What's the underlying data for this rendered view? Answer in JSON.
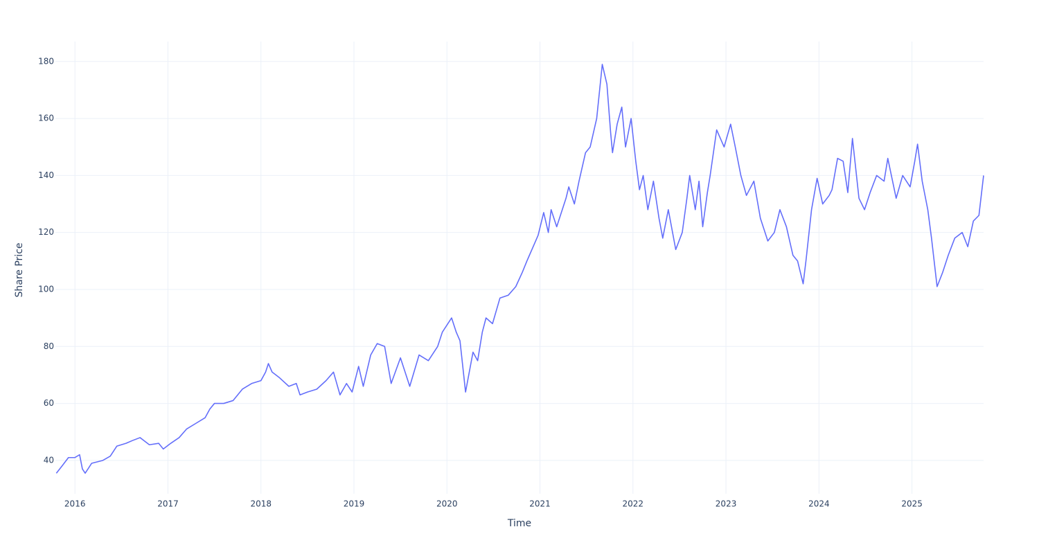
{
  "chart_data": {
    "type": "line",
    "xlabel": "Time",
    "ylabel": "Share Price",
    "xlim": [
      2015.79,
      2025.77
    ],
    "ylim": [
      28.3,
      187
    ],
    "xticks": [
      2016,
      2017,
      2018,
      2019,
      2020,
      2021,
      2022,
      2023,
      2024,
      2025
    ],
    "yticks": [
      40,
      60,
      80,
      100,
      120,
      140,
      160,
      180
    ],
    "grid": true,
    "series": [
      {
        "color": "#636efa",
        "x": [
          2015.8,
          2015.86,
          2015.93,
          2016.0,
          2016.05,
          2016.08,
          2016.11,
          2016.18,
          2016.3,
          2016.38,
          2016.45,
          2016.55,
          2016.62,
          2016.7,
          2016.8,
          2016.9,
          2016.95,
          2017.03,
          2017.12,
          2017.2,
          2017.3,
          2017.4,
          2017.45,
          2017.5,
          2017.6,
          2017.7,
          2017.8,
          2017.9,
          2018.0,
          2018.05,
          2018.08,
          2018.12,
          2018.2,
          2018.3,
          2018.38,
          2018.42,
          2018.5,
          2018.6,
          2018.7,
          2018.78,
          2018.85,
          2018.92,
          2018.98,
          2019.05,
          2019.1,
          2019.18,
          2019.25,
          2019.33,
          2019.4,
          2019.5,
          2019.6,
          2019.7,
          2019.8,
          2019.9,
          2019.95,
          2020.05,
          2020.1,
          2020.14,
          2020.2,
          2020.28,
          2020.33,
          2020.38,
          2020.42,
          2020.49,
          2020.57,
          2020.66,
          2020.74,
          2020.81,
          2020.86,
          2020.94,
          2020.98,
          2021.04,
          2021.09,
          2021.12,
          2021.18,
          2021.28,
          2021.31,
          2021.37,
          2021.42,
          2021.49,
          2021.54,
          2021.61,
          2021.67,
          2021.72,
          2021.76,
          2021.78,
          2021.83,
          2021.88,
          2021.92,
          2021.98,
          2022.03,
          2022.07,
          2022.11,
          2022.16,
          2022.22,
          2022.28,
          2022.32,
          2022.38,
          2022.46,
          2022.53,
          2022.58,
          2022.61,
          2022.67,
          2022.71,
          2022.75,
          2022.8,
          2022.83,
          2022.9,
          2022.98,
          2023.05,
          2023.1,
          2023.16,
          2023.22,
          2023.3,
          2023.37,
          2023.45,
          2023.52,
          2023.58,
          2023.65,
          2023.72,
          2023.77,
          2023.83,
          2023.86,
          2023.92,
          2023.98,
          2024.04,
          2024.11,
          2024.14,
          2024.2,
          2024.26,
          2024.31,
          2024.36,
          2024.43,
          2024.49,
          2024.55,
          2024.62,
          2024.7,
          2024.74,
          2024.83,
          2024.9,
          2024.98,
          2025.03,
          2025.06,
          2025.11,
          2025.17,
          2025.21,
          2025.27,
          2025.33,
          2025.39,
          2025.46,
          2025.54,
          2025.6,
          2025.66,
          2025.72,
          2025.77
        ],
        "values": [
          35.5,
          38,
          41,
          41,
          42,
          37,
          35.5,
          39,
          40,
          41.5,
          45,
          46,
          47,
          48,
          45.5,
          46,
          44,
          46,
          48,
          51,
          53,
          55,
          58,
          60,
          60,
          61,
          65,
          67,
          68,
          71,
          74,
          71,
          69,
          66,
          67,
          63,
          64,
          65,
          68,
          71,
          63,
          67,
          64,
          73,
          66,
          77,
          81,
          80,
          67,
          76,
          66,
          77,
          75,
          80,
          85,
          90,
          85,
          82,
          64,
          78,
          75,
          85,
          90,
          88,
          97,
          98,
          101,
          106,
          110,
          116,
          119,
          127,
          120,
          128,
          122,
          132,
          136,
          130,
          138,
          148,
          150,
          160,
          179,
          172,
          155,
          148,
          158,
          164,
          150,
          160,
          145,
          135,
          140,
          128,
          138,
          125,
          118,
          128,
          114,
          120,
          132,
          140,
          128,
          138,
          122,
          134,
          140,
          156,
          150,
          158,
          150,
          140,
          133,
          138,
          125,
          117,
          120,
          128,
          122,
          112,
          110,
          102,
          110,
          128,
          139,
          130,
          133,
          135,
          146,
          145,
          134,
          153,
          132,
          128,
          134,
          140,
          138,
          146,
          132,
          140,
          136,
          145,
          151,
          138,
          128,
          118,
          101,
          106,
          112,
          118,
          120,
          115,
          124,
          126,
          140
        ]
      }
    ]
  }
}
